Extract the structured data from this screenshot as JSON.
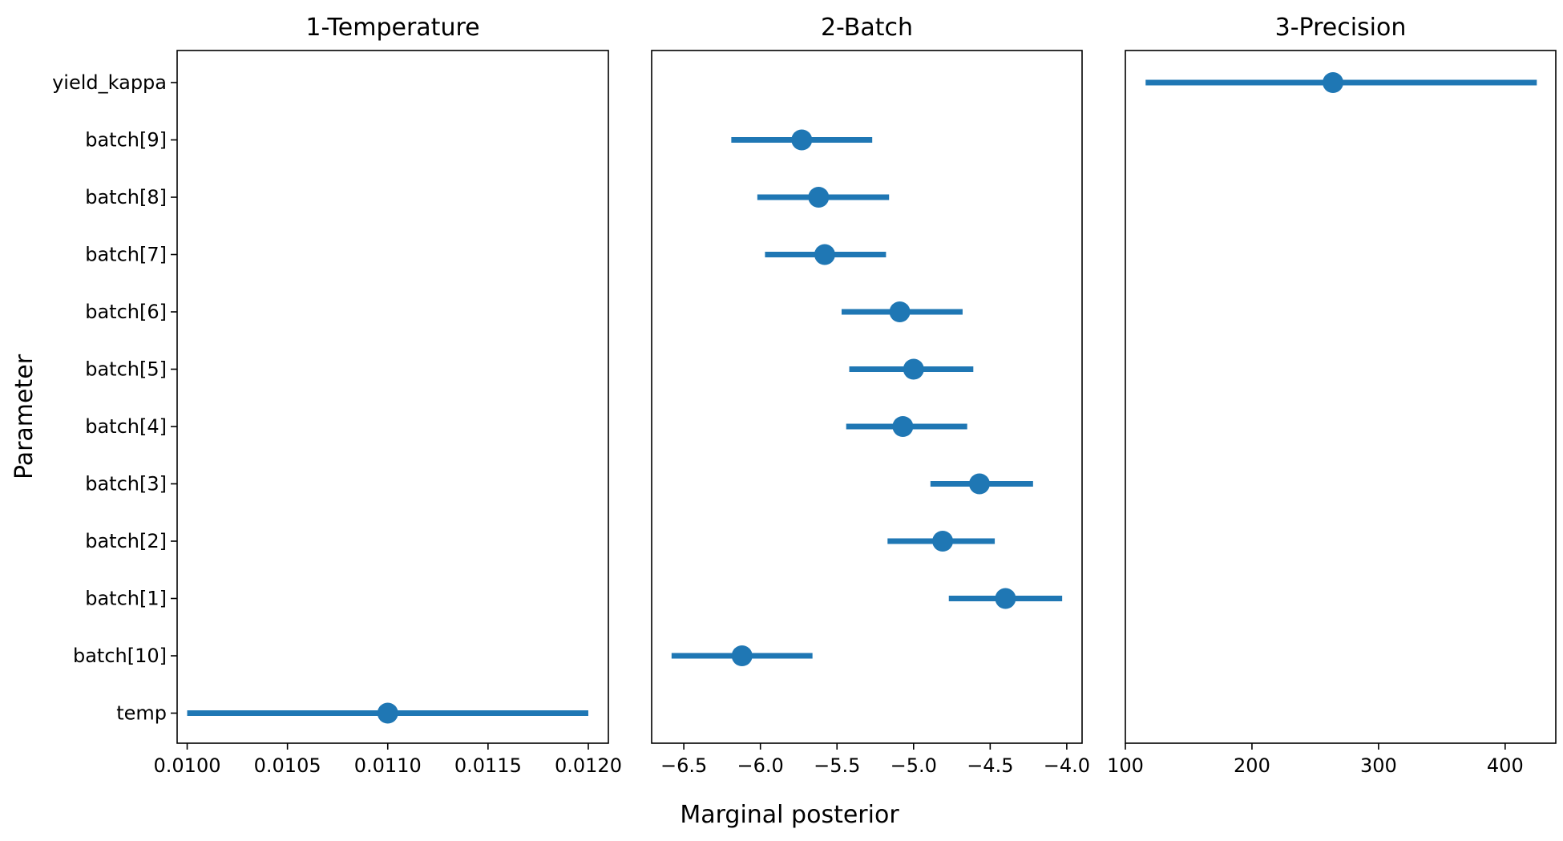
{
  "chart_data": {
    "type": "forest",
    "xlabel": "Marginal posterior",
    "ylabel": "Parameter",
    "parameters": [
      "yield_kappa",
      "batch[9]",
      "batch[8]",
      "batch[7]",
      "batch[6]",
      "batch[5]",
      "batch[4]",
      "batch[3]",
      "batch[2]",
      "batch[1]",
      "batch[10]",
      "temp"
    ],
    "color": "#1f77b4",
    "grid": false,
    "panels": [
      {
        "title": "1-Temperature",
        "xlim": [
          0.00995,
          0.0121
        ],
        "xticks": [
          "0.0100",
          "0.0105",
          "0.0110",
          "0.0115",
          "0.0120"
        ],
        "xtick_values": [
          0.01,
          0.0105,
          0.011,
          0.0115,
          0.012
        ],
        "points": [
          {
            "param": "temp",
            "mean": 0.011,
            "low": 0.01,
            "high": 0.012
          }
        ]
      },
      {
        "title": "2-Batch",
        "xlim": [
          -6.71,
          -3.9
        ],
        "xticks": [
          "−6.5",
          "−6.0",
          "−5.5",
          "−5.0",
          "−4.5",
          "−4.0"
        ],
        "xtick_values": [
          -6.5,
          -6.0,
          -5.5,
          -5.0,
          -4.5,
          -4.0
        ],
        "points": [
          {
            "param": "batch[9]",
            "mean": -5.73,
            "low": -6.19,
            "high": -5.27
          },
          {
            "param": "batch[8]",
            "mean": -5.62,
            "low": -6.02,
            "high": -5.16
          },
          {
            "param": "batch[7]",
            "mean": -5.58,
            "low": -5.97,
            "high": -5.18
          },
          {
            "param": "batch[6]",
            "mean": -5.09,
            "low": -5.47,
            "high": -4.68
          },
          {
            "param": "batch[5]",
            "mean": -5.0,
            "low": -5.42,
            "high": -4.61
          },
          {
            "param": "batch[4]",
            "mean": -5.07,
            "low": -5.44,
            "high": -4.65
          },
          {
            "param": "batch[3]",
            "mean": -4.57,
            "low": -4.89,
            "high": -4.22
          },
          {
            "param": "batch[2]",
            "mean": -4.81,
            "low": -5.17,
            "high": -4.47
          },
          {
            "param": "batch[1]",
            "mean": -4.4,
            "low": -4.77,
            "high": -4.03
          },
          {
            "param": "batch[10]",
            "mean": -6.12,
            "low": -6.58,
            "high": -5.66
          }
        ]
      },
      {
        "title": "3-Precision",
        "xlim": [
          100,
          440
        ],
        "xticks": [
          "100",
          "200",
          "300",
          "400"
        ],
        "xtick_values": [
          100,
          200,
          300,
          400
        ],
        "points": [
          {
            "param": "yield_kappa",
            "mean": 264,
            "low": 116,
            "high": 425
          }
        ]
      }
    ]
  }
}
